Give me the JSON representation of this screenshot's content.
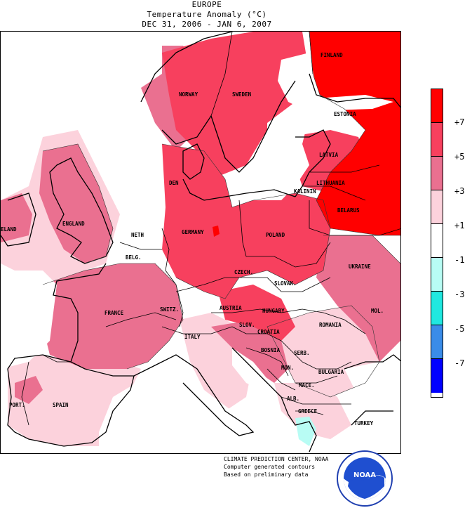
{
  "title": {
    "region": "EUROPE",
    "subtitle": "Temperature Anomaly (°C)",
    "period": "DEC 31, 2006 - JAN  6, 2007"
  },
  "legend": {
    "items": [
      {
        "value_label": "+7",
        "color": "#ff0000"
      },
      {
        "value_label": "+5",
        "color": "#f7405e"
      },
      {
        "value_label": "+3",
        "color": "#ea7090"
      },
      {
        "value_label": "+1",
        "color": "#fcd2dc"
      },
      {
        "value_label": "-1",
        "color": "#ffffff"
      },
      {
        "value_label": "-3",
        "color": "#b8fcf4"
      },
      {
        "value_label": "-5",
        "color": "#20e8e0"
      },
      {
        "value_label": "-7",
        "color": "#3a8ce8"
      }
    ],
    "bottom_color": "#0000ff"
  },
  "labels": {
    "finland": "FINLAND",
    "norway": "NORWAY",
    "sweden": "SWEDEN",
    "estonia": "ESTONIA",
    "latvia": "LATVIA",
    "lithuania": "LITHUANIA",
    "kalinin": "KALININ",
    "belarus": "BELARUS",
    "den": "DEN",
    "england": "ENGLAND",
    "ireland": "ELAND",
    "neth": "NETH",
    "germany": "GERMANY",
    "poland": "POLAND",
    "belg": "BELG.",
    "czech": "CZECH.",
    "slovak": "SLOVAK.",
    "ukraine": "UKRAINE",
    "france": "FRANCE",
    "switz": "SWITZ.",
    "austria": "AUSTRIA",
    "hungary": "HUNGARY",
    "mol": "MOL.",
    "romania": "ROMANIA",
    "slov": "SLOV.",
    "croatia": "CROATIA",
    "italy": "ITALY",
    "bosnia": "BOSNIA",
    "serb": "SERB.",
    "mon": "MON.",
    "bulgaria": "BULGARIA",
    "mace": "MACE.",
    "alb": "ALB.",
    "greece": "GREECE",
    "turkey": "TURKEY",
    "port": "PORT.",
    "spain": "SPAIN"
  },
  "credits": {
    "line1": "CLIMATE PREDICTION CENTER, NOAA",
    "line2": "Computer generated contours",
    "line3": "Based on preliminary data"
  },
  "logo": {
    "text": "NOAA"
  }
}
